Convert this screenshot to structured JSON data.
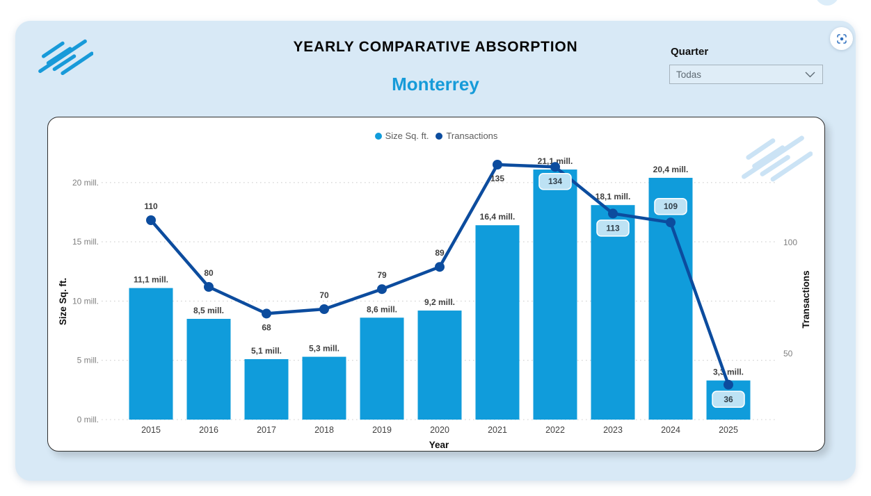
{
  "header": {
    "title": "YEARLY COMPARATIVE ABSORPTION",
    "subtitle": "Monterrey"
  },
  "filter": {
    "label": "Quarter",
    "value": "Todas"
  },
  "focus_button": {
    "icon": "focus-mode-icon"
  },
  "legend": {
    "position": "top-center",
    "items": [
      {
        "label": "Size Sq. ft.",
        "color": "#109CDB"
      },
      {
        "label": "Transactions",
        "color": "#0C4C9E"
      }
    ]
  },
  "chart_data": {
    "type": "combo-bar-line",
    "categories": [
      "2015",
      "2016",
      "2017",
      "2018",
      "2019",
      "2020",
      "2021",
      "2022",
      "2023",
      "2024",
      "2025"
    ],
    "series": [
      {
        "name": "Size Sq. ft.",
        "type": "bar",
        "color": "#109CDB",
        "unit": "mill. sq. ft.",
        "values": [
          11.1,
          8.5,
          5.1,
          5.3,
          8.6,
          9.2,
          16.4,
          21.1,
          18.1,
          20.4,
          3.3
        ],
        "labels": [
          "11,1 mill.",
          "8,5 mill.",
          "5,1 mill.",
          "5,3 mill.",
          "8,6 mill.",
          "9,2 mill.",
          "16,4 mill.",
          "21,1 mill.",
          "18,1 mill.",
          "20,4 mill.",
          "3,3 mill."
        ]
      },
      {
        "name": "Transactions",
        "type": "line",
        "color": "#0C4C9E",
        "values": [
          110,
          80,
          68,
          70,
          79,
          89,
          135,
          134,
          113,
          109,
          36
        ],
        "label_placement": [
          "above",
          "above",
          "below",
          "above",
          "above",
          "above",
          "below",
          "callout-below",
          "callout-below",
          "callout-above",
          "callout-below"
        ],
        "callout_style": {
          "bg": "#BDE2F4",
          "border": "#FFFFFF"
        }
      }
    ],
    "x_axis": {
      "title": "Year"
    },
    "left_axis": {
      "title": "Size Sq. ft.",
      "tick_values": [
        0,
        5,
        10,
        15,
        20
      ],
      "tick_labels": [
        "0 mill.",
        "5 mill.",
        "10 mill.",
        "15 mill.",
        "20 mill."
      ],
      "range": [
        0,
        22
      ]
    },
    "right_axis": {
      "title": "Transactions",
      "tick_values": [
        50,
        100
      ],
      "tick_labels": [
        "50",
        "100"
      ]
    },
    "grid": "dotted-horizontal"
  }
}
